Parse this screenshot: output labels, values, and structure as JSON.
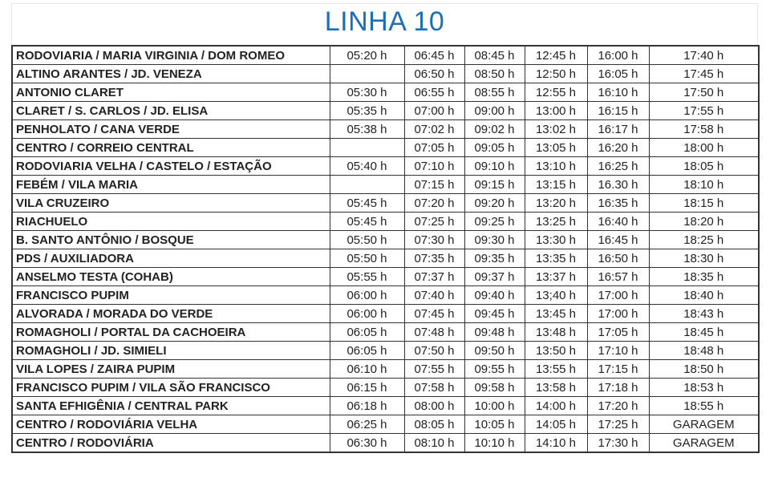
{
  "title": "LINHA 10",
  "accent_color": "#1a6fb5",
  "rows": [
    {
      "stop": "RODOVIARIA / MARIA VIRGINIA / DOM ROMEO",
      "times": [
        "05:20 h",
        "06:45 h",
        "08:45 h",
        "12:45 h",
        "16:00 h",
        "17:40 h"
      ]
    },
    {
      "stop": "ALTINO ARANTES / JD. VENEZA",
      "times": [
        "",
        "06:50 h",
        "08:50 h",
        "12:50 h",
        "16:05 h",
        "17:45 h"
      ]
    },
    {
      "stop": "ANTONIO CLARET",
      "times": [
        "05:30 h",
        "06:55 h",
        "08:55 h",
        "12:55 h",
        "16:10 h",
        "17:50 h"
      ]
    },
    {
      "stop": "CLARET / S. CARLOS / JD. ELISA",
      "times": [
        "05:35 h",
        "07:00 h",
        "09:00 h",
        "13:00 h",
        "16:15 h",
        "17:55 h"
      ]
    },
    {
      "stop": "PENHOLATO / CANA VERDE",
      "times": [
        "05:38 h",
        "07:02 h",
        "09:02 h",
        "13:02 h",
        "16:17 h",
        "17:58 h"
      ]
    },
    {
      "stop": "CENTRO / CORREIO CENTRAL",
      "times": [
        "",
        "07:05 h",
        "09:05 h",
        "13:05 h",
        "16:20 h",
        "18:00 h"
      ]
    },
    {
      "stop": "RODOVIARIA VELHA / CASTELO / ESTAÇÃO",
      "times": [
        "05:40 h",
        "07:10 h",
        "09:10 h",
        "13:10 h",
        "16:25 h",
        "18:05 h"
      ]
    },
    {
      "stop": "FEBÉM / VILA MARIA",
      "times": [
        "",
        "07:15 h",
        "09:15 h",
        "13:15 h",
        "16.30 h",
        "18:10 h"
      ]
    },
    {
      "stop": "VILA CRUZEIRO",
      "times": [
        "05:45 h",
        "07:20 h",
        "09:20 h",
        "13:20 h",
        "16:35 h",
        "18:15 h"
      ]
    },
    {
      "stop": "RIACHUELO",
      "times": [
        "05:45 h",
        "07:25 h",
        "09:25 h",
        "13:25 h",
        "16:40 h",
        "18:20 h"
      ]
    },
    {
      "stop": "B. SANTO ANTÔNIO / BOSQUE",
      "times": [
        "05:50 h",
        "07:30 h",
        "09:30 h",
        "13:30 h",
        "16:45 h",
        "18:25 h"
      ]
    },
    {
      "stop": "PDS / AUXILIADORA",
      "times": [
        "05:50 h",
        "07:35 h",
        "09:35 h",
        "13:35 h",
        "16:50 h",
        "18:30 h"
      ]
    },
    {
      "stop": "ANSELMO TESTA (COHAB)",
      "times": [
        "05:55 h",
        "07:37 h",
        "09:37 h",
        "13:37 h",
        "16:57 h",
        "18:35 h"
      ]
    },
    {
      "stop": "FRANCISCO PUPIM",
      "times": [
        "06:00 h",
        "07:40 h",
        "09:40 h",
        "13;40 h",
        "17:00 h",
        "18:40 h"
      ]
    },
    {
      "stop": "ALVORADA / MORADA DO VERDE",
      "times": [
        "06:00 h",
        "07:45 h",
        "09:45 h",
        "13:45 h",
        "17:00 h",
        "18:43 h"
      ]
    },
    {
      "stop": "ROMAGHOLI / PORTAL DA CACHOEIRA",
      "times": [
        "06:05 h",
        "07:48 h",
        "09:48 h",
        "13:48 h",
        "17:05 h",
        "18:45 h"
      ]
    },
    {
      "stop": "ROMAGHOLI / JD. SIMIELI",
      "times": [
        "06:05 h",
        "07:50 h",
        "09:50 h",
        "13:50 h",
        "17:10 h",
        "18:48 h"
      ]
    },
    {
      "stop": "VILA LOPES / ZAIRA PUPIM",
      "times": [
        "06:10 h",
        "07:55 h",
        "09:55 h",
        "13:55 h",
        "17:15 h",
        "18:50 h"
      ]
    },
    {
      "stop": "FRANCISCO PUPIM / VILA SÃO FRANCISCO",
      "times": [
        "06:15 h",
        "07:58 h",
        "09:58 h",
        "13:58 h",
        "17:18 h",
        "18:53 h"
      ]
    },
    {
      "stop": "SANTA EFHIGÊNIA / CENTRAL PARK",
      "times": [
        "06:18 h",
        "08:00 h",
        "10:00 h",
        "14:00 h",
        "17:20 h",
        "18:55 h"
      ]
    },
    {
      "stop": "CENTRO / RODOVIÁRIA VELHA",
      "times": [
        "06:25 h",
        "08:05 h",
        "10:05 h",
        "14:05 h",
        "17:25 h",
        "GARAGEM"
      ]
    },
    {
      "stop": "CENTRO / RODOVIÁRIA",
      "times": [
        "06:30 h",
        "08:10 h",
        "10:10 h",
        "14:10 h",
        "17:30 h",
        "GARAGEM"
      ]
    }
  ]
}
